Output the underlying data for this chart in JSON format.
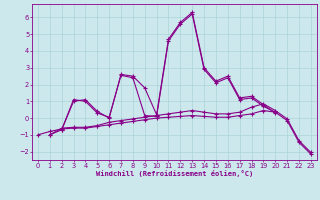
{
  "xlabel": "Windchill (Refroidissement éolien,°C)",
  "xlim": [
    -0.5,
    23.5
  ],
  "ylim": [
    -2.5,
    6.8
  ],
  "yticks": [
    -2,
    -1,
    0,
    1,
    2,
    3,
    4,
    5,
    6
  ],
  "xticks": [
    0,
    1,
    2,
    3,
    4,
    5,
    6,
    7,
    8,
    9,
    10,
    11,
    12,
    13,
    14,
    15,
    16,
    17,
    18,
    19,
    20,
    21,
    22,
    23
  ],
  "background_color": "#cce8ec",
  "grid_color": "#aad4d8",
  "line_color": "#880088",
  "series": [
    [
      null,
      -1.0,
      -0.7,
      1.0,
      1.1,
      0.4,
      0.0,
      2.6,
      2.5,
      1.8,
      0.2,
      4.7,
      5.7,
      6.3,
      3.0,
      2.2,
      2.5,
      1.2,
      1.3,
      0.8,
      0.3,
      null,
      null,
      null
    ],
    [
      null,
      null,
      -0.7,
      1.1,
      1.0,
      0.3,
      0.05,
      2.55,
      2.4,
      0.15,
      0.1,
      4.6,
      5.6,
      6.2,
      2.9,
      2.1,
      2.4,
      1.1,
      1.2,
      0.7,
      0.35,
      null,
      null,
      null
    ],
    [
      null,
      -1.0,
      -0.6,
      -0.55,
      -0.55,
      -0.45,
      -0.25,
      -0.15,
      -0.05,
      0.05,
      0.15,
      0.25,
      0.35,
      0.45,
      0.35,
      0.25,
      0.25,
      0.35,
      0.65,
      0.85,
      0.45,
      -0.05,
      -1.35,
      -2.05
    ],
    [
      -1.0,
      -0.8,
      -0.65,
      -0.6,
      -0.6,
      -0.5,
      -0.4,
      -0.3,
      -0.2,
      -0.1,
      0.0,
      0.05,
      0.1,
      0.15,
      0.1,
      0.05,
      0.05,
      0.15,
      0.25,
      0.45,
      0.35,
      -0.15,
      -1.45,
      -2.15
    ]
  ]
}
